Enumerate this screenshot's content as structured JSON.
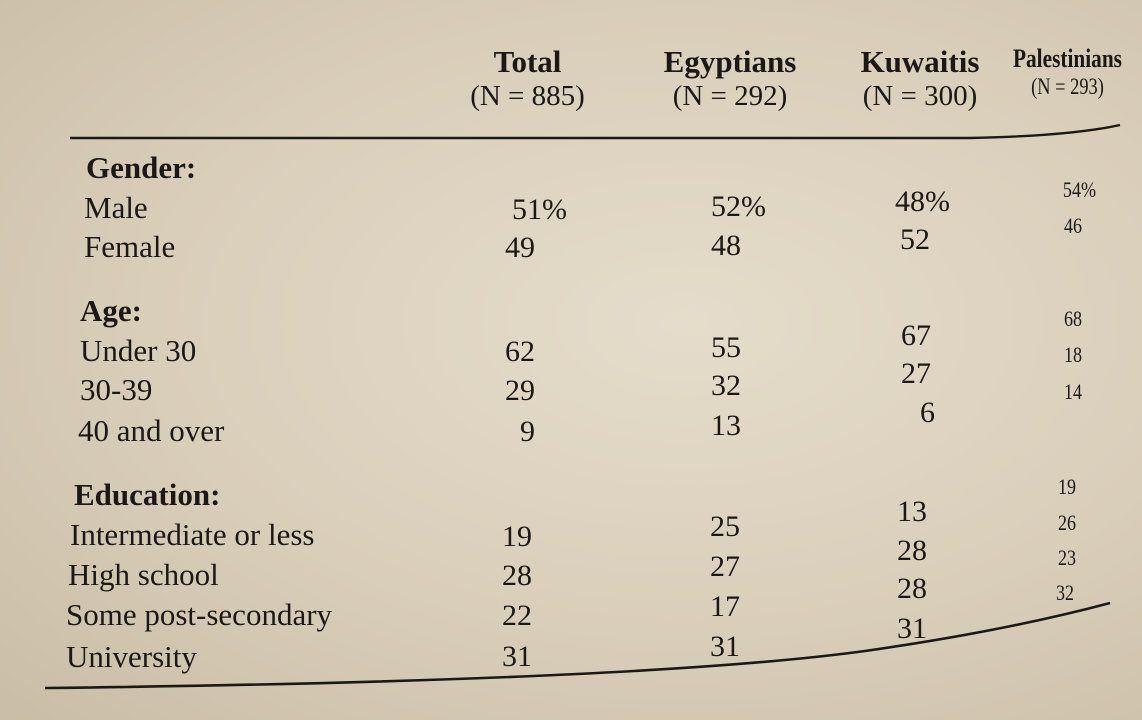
{
  "columns": [
    {
      "name": "Total",
      "n": "(N = 885)"
    },
    {
      "name": "Egyptians",
      "n": "(N = 292)"
    },
    {
      "name": "Kuwaitis",
      "n": "(N = 300)"
    },
    {
      "name": "Palestinians",
      "n": "(N = 293)"
    }
  ],
  "sections": [
    {
      "title": "Gender:",
      "rows": [
        {
          "label": "Male",
          "values": [
            "51%",
            "52%",
            "48%",
            "54%"
          ]
        },
        {
          "label": "Female",
          "values": [
            "49",
            "48",
            "52",
            "46"
          ]
        }
      ]
    },
    {
      "title": "Age:",
      "rows": [
        {
          "label": "Under 30",
          "values": [
            "62",
            "55",
            "67",
            "68"
          ]
        },
        {
          "label": "30-39",
          "values": [
            "29",
            "32",
            "27",
            "18"
          ]
        },
        {
          "label": "40 and over",
          "values": [
            "9",
            "13",
            "6",
            "14"
          ]
        }
      ]
    },
    {
      "title": "Education:",
      "rows": [
        {
          "label": "Intermediate or less",
          "values": [
            "19",
            "25",
            "13",
            "19"
          ]
        },
        {
          "label": "High school",
          "values": [
            "28",
            "27",
            "28",
            "26"
          ]
        },
        {
          "label": "Some post-secondary",
          "values": [
            "22",
            "17",
            "28",
            "23"
          ]
        },
        {
          "label": "University",
          "values": [
            "31",
            "31",
            "31",
            "32"
          ]
        }
      ]
    }
  ]
}
